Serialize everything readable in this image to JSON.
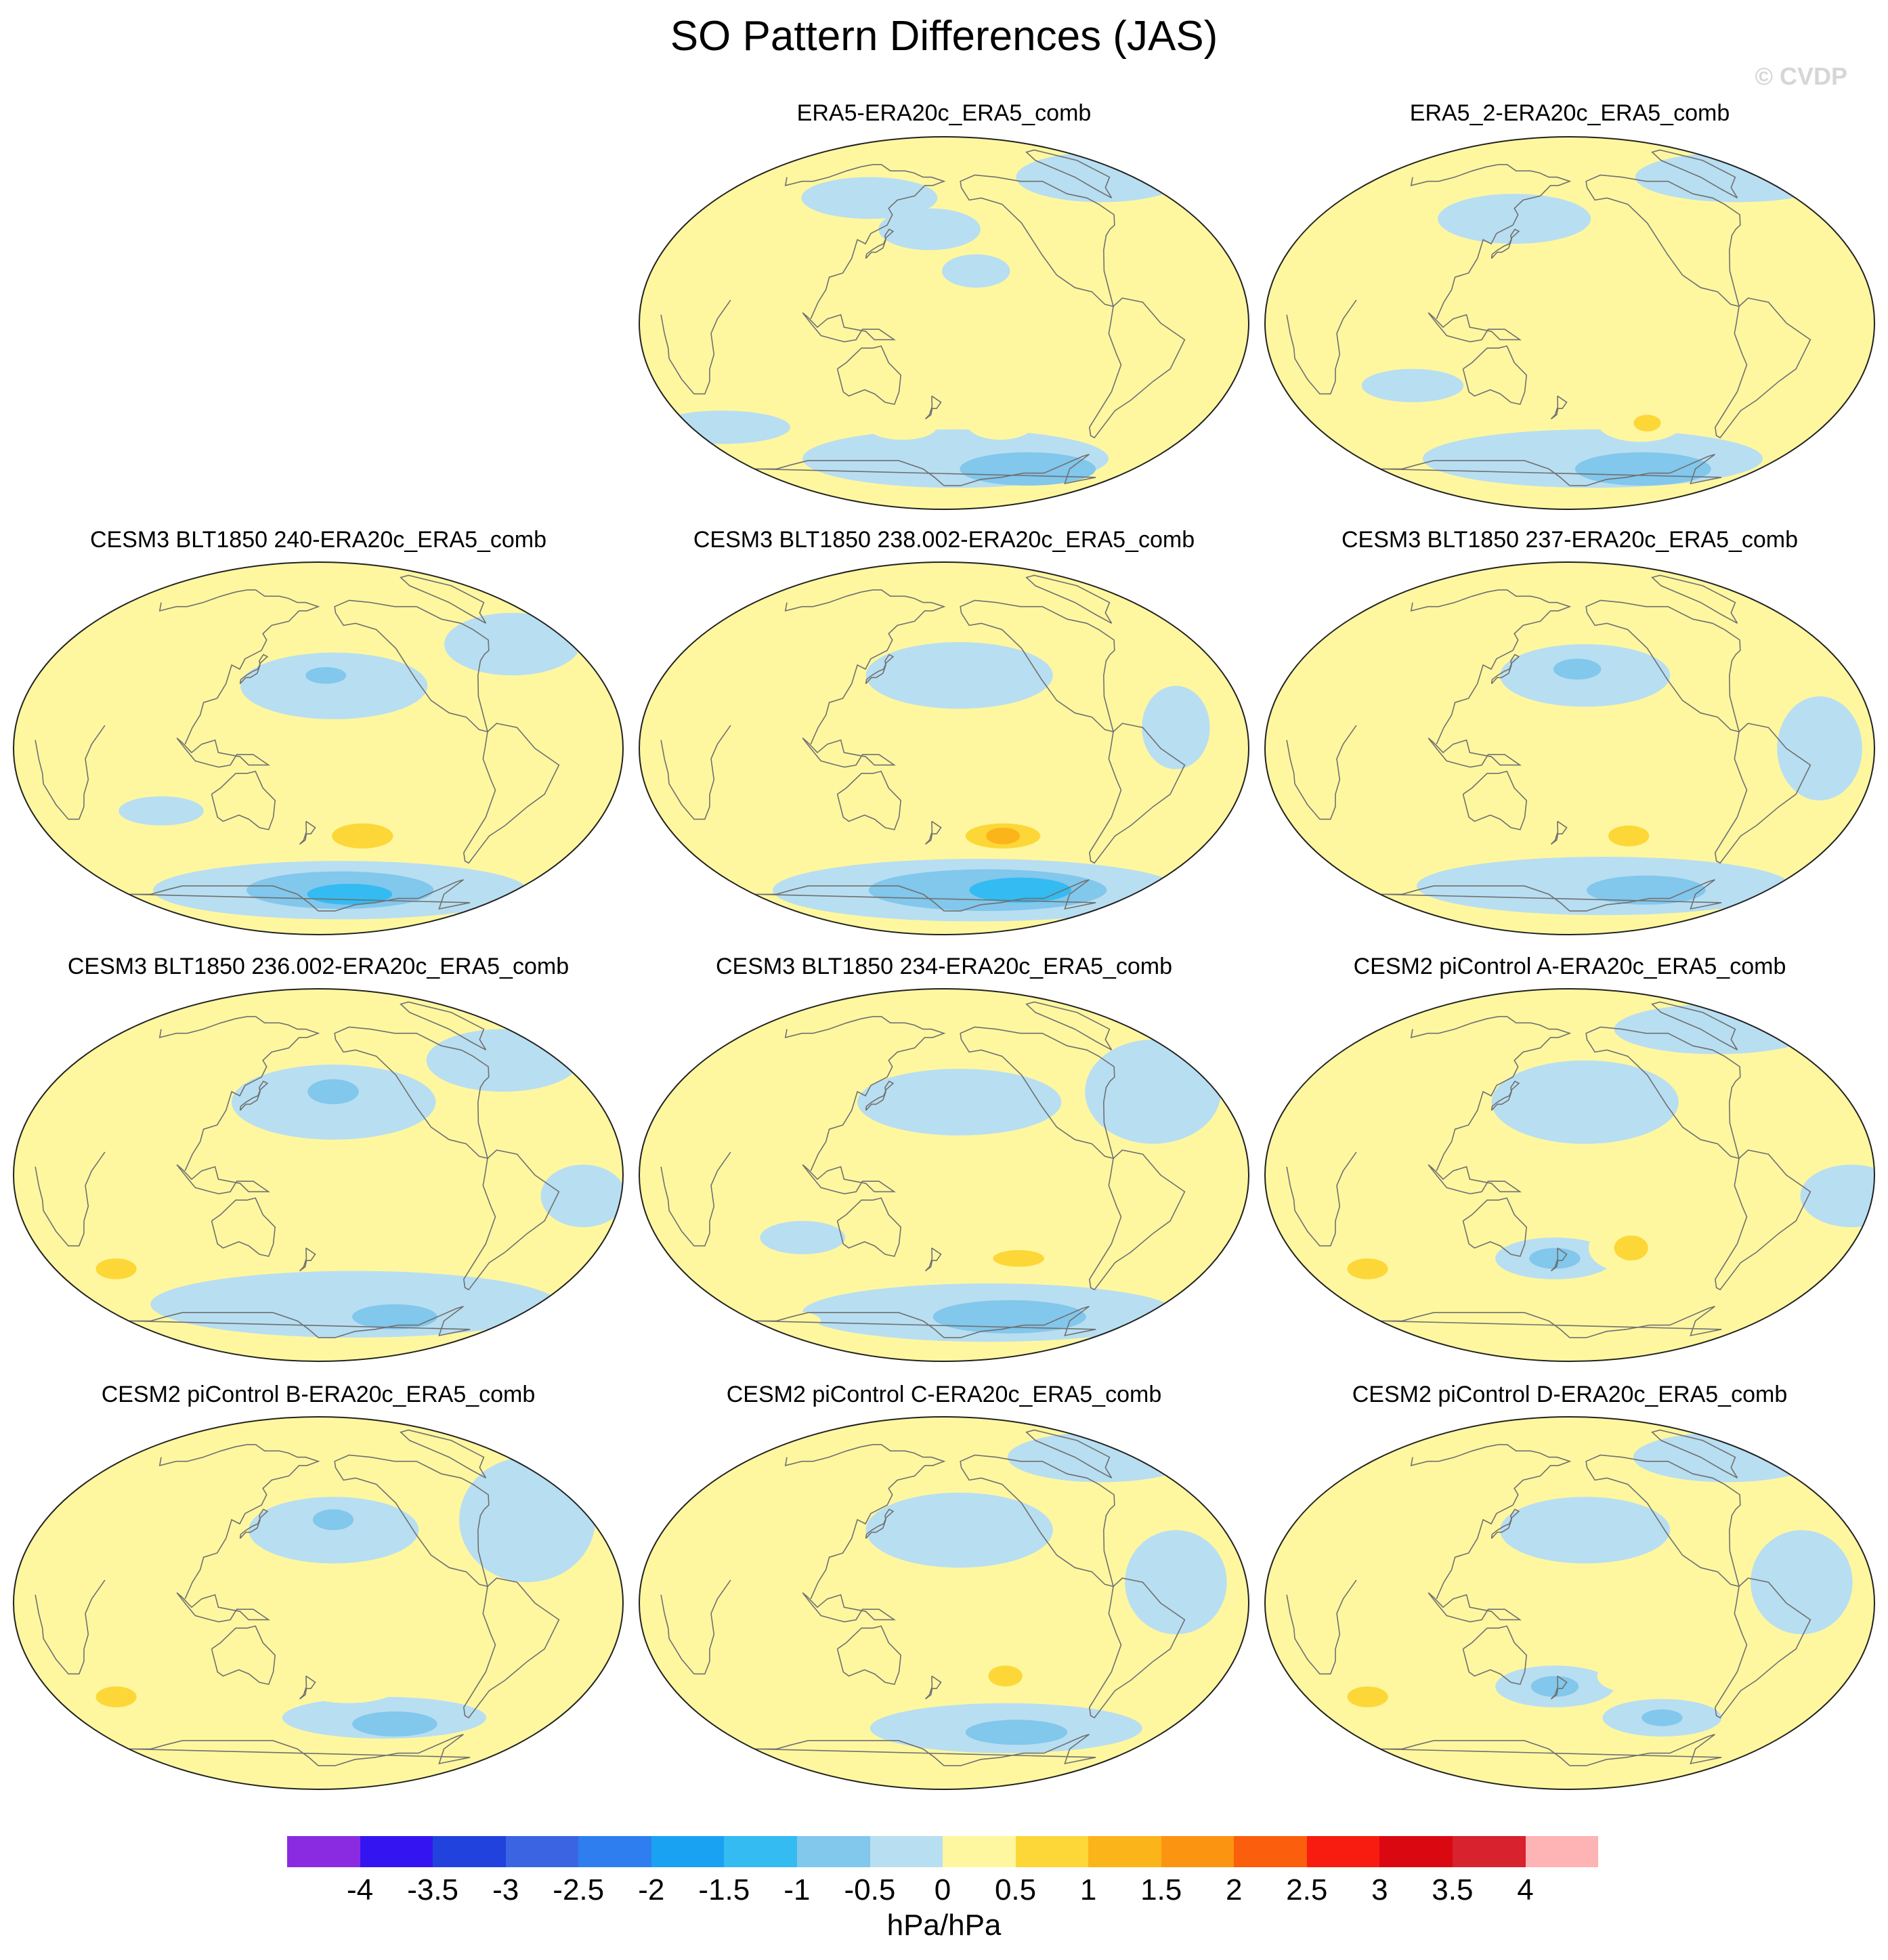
{
  "title": "SO Pattern Differences (JAS)",
  "watermark": "© CVDP",
  "chart_data": {
    "type": "heatmap",
    "title": "SO Pattern Differences (JAS)",
    "projection": "robinson",
    "units": "hPa/hPa",
    "colorbar": {
      "tick_labels": [
        "-4",
        "-3.5",
        "-3",
        "-2.5",
        "-2",
        "-1.5",
        "-1",
        "-0.5",
        "0",
        "0.5",
        "1",
        "1.5",
        "2",
        "2.5",
        "3",
        "3.5",
        "4"
      ],
      "colors": [
        "#8a2be2",
        "#3514f2",
        "#2142dd",
        "#3b64e2",
        "#2e7ef0",
        "#1aa2f2",
        "#33bbf2",
        "#82c7ec",
        "#b8def1",
        "#fef7a0",
        "#fcd737",
        "#fbb419",
        "#fb9410",
        "#fb5e0c",
        "#f81b10",
        "#d90811",
        "#d8222d",
        "#feb3b5"
      ]
    },
    "panels": [
      {
        "title": "ERA5-ERA20c_ERA5_comb",
        "features": [
          {
            "type": "neg",
            "level": 1,
            "lon": -170,
            "lat": -65,
            "rx": 90,
            "ry": 14
          },
          {
            "type": "neg",
            "level": 2,
            "lon": -100,
            "lat": -70,
            "rx": 40,
            "ry": 8
          },
          {
            "type": "neg",
            "level": 1,
            "lon": 20,
            "lat": -50,
            "rx": 40,
            "ry": 8
          },
          {
            "type": "pos",
            "level": 1,
            "lon": -140,
            "lat": -48,
            "rx": 20,
            "ry": 8
          },
          {
            "type": "pos",
            "level": 1,
            "lon": 150,
            "lat": -50,
            "rx": 20,
            "ry": 6
          },
          {
            "type": "neg",
            "level": 1,
            "lon": 170,
            "lat": 45,
            "rx": 30,
            "ry": 10
          },
          {
            "type": "neg",
            "level": 1,
            "lon": 120,
            "lat": 60,
            "rx": 40,
            "ry": 10
          },
          {
            "type": "neg",
            "level": 1,
            "lon": -30,
            "lat": 70,
            "rx": 50,
            "ry": 12
          },
          {
            "type": "neg",
            "level": 1,
            "lon": -160,
            "lat": 25,
            "rx": 20,
            "ry": 8
          }
        ]
      },
      {
        "title": "ERA5_2-ERA20c_ERA5_comb",
        "features": [
          {
            "type": "neg",
            "level": 1,
            "lon": -160,
            "lat": -65,
            "rx": 100,
            "ry": 14
          },
          {
            "type": "neg",
            "level": 2,
            "lon": -110,
            "lat": -70,
            "rx": 40,
            "ry": 8
          },
          {
            "type": "pos",
            "level": 1,
            "lon": -130,
            "lat": -48,
            "rx": 25,
            "ry": 9
          },
          {
            "type": "pos",
            "level": 2,
            "lon": -125,
            "lat": -48,
            "rx": 8,
            "ry": 4
          },
          {
            "type": "pos",
            "level": 1,
            "lon": 130,
            "lat": -40,
            "rx": 12,
            "ry": 8
          },
          {
            "type": "pos",
            "level": 1,
            "lon": 10,
            "lat": -50,
            "rx": 12,
            "ry": 6
          },
          {
            "type": "neg",
            "level": 1,
            "lon": 140,
            "lat": 50,
            "rx": 45,
            "ry": 12
          },
          {
            "type": "neg",
            "level": 1,
            "lon": -20,
            "lat": 70,
            "rx": 60,
            "ry": 12
          },
          {
            "type": "neg",
            "level": 1,
            "lon": 80,
            "lat": -30,
            "rx": 30,
            "ry": 8
          }
        ]
      },
      {
        "title": "CESM3 BLT1850 240-ERA20c_ERA5_comb",
        "features": [
          {
            "type": "neg",
            "level": 1,
            "lon": -160,
            "lat": -68,
            "rx": 110,
            "ry": 14
          },
          {
            "type": "neg",
            "level": 2,
            "lon": -160,
            "lat": -68,
            "rx": 55,
            "ry": 9
          },
          {
            "type": "neg",
            "level": 3,
            "lon": -150,
            "lat": -70,
            "rx": 25,
            "ry": 5
          },
          {
            "type": "pos",
            "level": 1,
            "lon": -170,
            "lat": -42,
            "rx": 50,
            "ry": 10
          },
          {
            "type": "pos",
            "level": 2,
            "lon": -150,
            "lat": -42,
            "rx": 18,
            "ry": 6
          },
          {
            "type": "pos",
            "level": 1,
            "lon": 40,
            "lat": -48,
            "rx": 30,
            "ry": 8
          },
          {
            "type": "neg",
            "level": 1,
            "lon": -170,
            "lat": 30,
            "rx": 55,
            "ry": 16
          },
          {
            "type": "neg",
            "level": 2,
            "lon": -175,
            "lat": 35,
            "rx": 12,
            "ry": 4
          },
          {
            "type": "neg",
            "level": 1,
            "lon": 80,
            "lat": -30,
            "rx": 25,
            "ry": 7
          },
          {
            "type": "neg",
            "level": 1,
            "lon": -40,
            "lat": 50,
            "rx": 40,
            "ry": 15
          }
        ]
      },
      {
        "title": "CESM3 BLT1850 238.002-ERA20c_ERA5_comb",
        "features": [
          {
            "type": "neg",
            "level": 1,
            "lon": -150,
            "lat": -68,
            "rx": 120,
            "ry": 15
          },
          {
            "type": "neg",
            "level": 2,
            "lon": -140,
            "lat": -68,
            "rx": 70,
            "ry": 10
          },
          {
            "type": "neg",
            "level": 3,
            "lon": -110,
            "lat": -68,
            "rx": 30,
            "ry": 6
          },
          {
            "type": "pos",
            "level": 1,
            "lon": -150,
            "lat": -42,
            "rx": 45,
            "ry": 10
          },
          {
            "type": "pos",
            "level": 2,
            "lon": -140,
            "lat": -42,
            "rx": 22,
            "ry": 6
          },
          {
            "type": "pos",
            "level": 3,
            "lon": -140,
            "lat": -42,
            "rx": 10,
            "ry": 4
          },
          {
            "type": "pos",
            "level": 1,
            "lon": 30,
            "lat": -45,
            "rx": 30,
            "ry": 7
          },
          {
            "type": "pos",
            "level": 1,
            "lon": -60,
            "lat": 78,
            "rx": 20,
            "ry": 6
          },
          {
            "type": "pos",
            "level": 1,
            "lon": 80,
            "lat": 80,
            "rx": 20,
            "ry": 5
          },
          {
            "type": "neg",
            "level": 1,
            "lon": -170,
            "lat": 35,
            "rx": 55,
            "ry": 16
          },
          {
            "type": "neg",
            "level": 1,
            "lon": -40,
            "lat": 10,
            "rx": 20,
            "ry": 20
          }
        ]
      },
      {
        "title": "CESM3 BLT1850 237-ERA20c_ERA5_comb",
        "features": [
          {
            "type": "neg",
            "level": 1,
            "lon": -150,
            "lat": -66,
            "rx": 110,
            "ry": 14
          },
          {
            "type": "neg",
            "level": 2,
            "lon": -110,
            "lat": -68,
            "rx": 35,
            "ry": 7
          },
          {
            "type": "pos",
            "level": 1,
            "lon": -150,
            "lat": -42,
            "rx": 35,
            "ry": 9
          },
          {
            "type": "pos",
            "level": 2,
            "lon": -140,
            "lat": -42,
            "rx": 12,
            "ry": 5
          },
          {
            "type": "pos",
            "level": 1,
            "lon": 40,
            "lat": -45,
            "rx": 20,
            "ry": 6
          },
          {
            "type": "neg",
            "level": 1,
            "lon": -170,
            "lat": 35,
            "rx": 50,
            "ry": 15
          },
          {
            "type": "neg",
            "level": 2,
            "lon": -175,
            "lat": 38,
            "rx": 14,
            "ry": 5
          },
          {
            "type": "pos",
            "level": 1,
            "lon": -170,
            "lat": 60,
            "rx": 10,
            "ry": 4
          },
          {
            "type": "neg",
            "level": 1,
            "lon": -30,
            "lat": 0,
            "rx": 25,
            "ry": 25
          }
        ]
      },
      {
        "title": "CESM3 BLT1850 236.002-ERA20c_ERA5_comb",
        "features": [
          {
            "type": "neg",
            "level": 1,
            "lon": -150,
            "lat": -62,
            "rx": 120,
            "ry": 16
          },
          {
            "type": "neg",
            "level": 2,
            "lon": -110,
            "lat": -68,
            "rx": 25,
            "ry": 6
          },
          {
            "type": "pos",
            "level": 1,
            "lon": -140,
            "lat": -35,
            "rx": 22,
            "ry": 8
          },
          {
            "type": "pos",
            "level": 1,
            "lon": 40,
            "lat": -45,
            "rx": 30,
            "ry": 10
          },
          {
            "type": "pos",
            "level": 2,
            "lon": 40,
            "lat": -45,
            "rx": 12,
            "ry": 5
          },
          {
            "type": "pos",
            "level": 1,
            "lon": -170,
            "lat": 65,
            "rx": 20,
            "ry": 8
          },
          {
            "type": "neg",
            "level": 1,
            "lon": -170,
            "lat": 35,
            "rx": 60,
            "ry": 18
          },
          {
            "type": "neg",
            "level": 2,
            "lon": -170,
            "lat": 40,
            "rx": 15,
            "ry": 6
          },
          {
            "type": "neg",
            "level": 1,
            "lon": -40,
            "lat": 55,
            "rx": 45,
            "ry": 15
          },
          {
            "type": "neg",
            "level": 1,
            "lon": -20,
            "lat": -10,
            "rx": 25,
            "ry": 15
          }
        ]
      },
      {
        "title": "CESM3 BLT1850 234-ERA20c_ERA5_comb",
        "features": [
          {
            "type": "neg",
            "level": 1,
            "lon": -140,
            "lat": -66,
            "rx": 110,
            "ry": 14
          },
          {
            "type": "neg",
            "level": 2,
            "lon": -120,
            "lat": -68,
            "rx": 45,
            "ry": 8
          },
          {
            "type": "pos",
            "level": 1,
            "lon": -130,
            "lat": -40,
            "rx": 40,
            "ry": 9
          },
          {
            "type": "pos",
            "level": 2,
            "lon": -130,
            "lat": -40,
            "rx": 15,
            "ry": 4
          },
          {
            "type": "pos",
            "level": 1,
            "lon": 30,
            "lat": -70,
            "rx": 20,
            "ry": 5
          },
          {
            "type": "neg",
            "level": 1,
            "lon": -170,
            "lat": 35,
            "rx": 60,
            "ry": 16
          },
          {
            "type": "neg",
            "level": 1,
            "lon": -40,
            "lat": 40,
            "rx": 40,
            "ry": 25
          },
          {
            "type": "neg",
            "level": 1,
            "lon": 90,
            "lat": -30,
            "rx": 25,
            "ry": 8
          }
        ]
      },
      {
        "title": "CESM2 piControl A-ERA20c_ERA5_comb",
        "features": [
          {
            "type": "neg",
            "level": 1,
            "lon": 170,
            "lat": -40,
            "rx": 35,
            "ry": 10
          },
          {
            "type": "neg",
            "level": 2,
            "lon": 170,
            "lat": -40,
            "rx": 15,
            "ry": 5
          },
          {
            "type": "pos",
            "level": 1,
            "lon": -140,
            "lat": -35,
            "rx": 25,
            "ry": 12
          },
          {
            "type": "pos",
            "level": 2,
            "lon": -140,
            "lat": -35,
            "rx": 10,
            "ry": 6
          },
          {
            "type": "pos",
            "level": 1,
            "lon": 40,
            "lat": -45,
            "rx": 35,
            "ry": 12
          },
          {
            "type": "pos",
            "level": 2,
            "lon": 40,
            "lat": -45,
            "rx": 12,
            "ry": 5
          },
          {
            "type": "neg",
            "level": 1,
            "lon": -170,
            "lat": 35,
            "rx": 55,
            "ry": 20
          },
          {
            "type": "neg",
            "level": 1,
            "lon": -40,
            "lat": 70,
            "rx": 60,
            "ry": 12
          },
          {
            "type": "neg",
            "level": 1,
            "lon": -10,
            "lat": -10,
            "rx": 30,
            "ry": 15
          }
        ]
      },
      {
        "title": "CESM2 piControl B-ERA20c_ERA5_comb",
        "features": [
          {
            "type": "neg",
            "level": 1,
            "lon": -130,
            "lat": -55,
            "rx": 60,
            "ry": 10
          },
          {
            "type": "neg",
            "level": 2,
            "lon": -120,
            "lat": -58,
            "rx": 25,
            "ry": 6
          },
          {
            "type": "pos",
            "level": 1,
            "lon": -160,
            "lat": -40,
            "rx": 30,
            "ry": 8
          },
          {
            "type": "pos",
            "level": 1,
            "lon": -80,
            "lat": -70,
            "rx": 20,
            "ry": 5
          },
          {
            "type": "pos",
            "level": 1,
            "lon": 40,
            "lat": -45,
            "rx": 35,
            "ry": 11
          },
          {
            "type": "pos",
            "level": 2,
            "lon": 40,
            "lat": -45,
            "rx": 12,
            "ry": 5
          },
          {
            "type": "neg",
            "level": 1,
            "lon": -170,
            "lat": 35,
            "rx": 50,
            "ry": 16
          },
          {
            "type": "neg",
            "level": 2,
            "lon": -170,
            "lat": 40,
            "rx": 12,
            "ry": 5
          },
          {
            "type": "neg",
            "level": 1,
            "lon": -40,
            "lat": 40,
            "rx": 40,
            "ry": 30
          }
        ]
      },
      {
        "title": "CESM2 piControl C-ERA20c_ERA5_comb",
        "features": [
          {
            "type": "neg",
            "level": 1,
            "lon": -130,
            "lat": -60,
            "rx": 80,
            "ry": 12
          },
          {
            "type": "neg",
            "level": 2,
            "lon": -120,
            "lat": -62,
            "rx": 30,
            "ry": 6
          },
          {
            "type": "pos",
            "level": 1,
            "lon": -140,
            "lat": -35,
            "rx": 22,
            "ry": 10
          },
          {
            "type": "pos",
            "level": 2,
            "lon": -140,
            "lat": -35,
            "rx": 10,
            "ry": 5
          },
          {
            "type": "pos",
            "level": 1,
            "lon": -30,
            "lat": -45,
            "rx": 15,
            "ry": 8
          },
          {
            "type": "neg",
            "level": 1,
            "lon": -170,
            "lat": 35,
            "rx": 55,
            "ry": 18
          },
          {
            "type": "neg",
            "level": 1,
            "lon": -30,
            "lat": 70,
            "rx": 55,
            "ry": 12
          },
          {
            "type": "neg",
            "level": 1,
            "lon": -40,
            "lat": 10,
            "rx": 30,
            "ry": 25
          }
        ]
      },
      {
        "title": "CESM2 piControl D-ERA20c_ERA5_comb",
        "features": [
          {
            "type": "neg",
            "level": 1,
            "lon": 170,
            "lat": -40,
            "rx": 35,
            "ry": 10
          },
          {
            "type": "neg",
            "level": 2,
            "lon": 170,
            "lat": -40,
            "rx": 14,
            "ry": 5
          },
          {
            "type": "neg",
            "level": 1,
            "lon": -110,
            "lat": -55,
            "rx": 35,
            "ry": 9
          },
          {
            "type": "neg",
            "level": 2,
            "lon": -110,
            "lat": -55,
            "rx": 12,
            "ry": 4
          },
          {
            "type": "pos",
            "level": 1,
            "lon": -140,
            "lat": -35,
            "rx": 20,
            "ry": 8
          },
          {
            "type": "pos",
            "level": 1,
            "lon": 40,
            "lat": -45,
            "rx": 35,
            "ry": 12
          },
          {
            "type": "pos",
            "level": 2,
            "lon": 40,
            "lat": -45,
            "rx": 12,
            "ry": 5
          },
          {
            "type": "pos",
            "level": 1,
            "lon": -130,
            "lat": -72,
            "rx": 60,
            "ry": 5
          },
          {
            "type": "neg",
            "level": 1,
            "lon": -170,
            "lat": 35,
            "rx": 50,
            "ry": 16
          },
          {
            "type": "neg",
            "level": 1,
            "lon": -30,
            "lat": 70,
            "rx": 55,
            "ry": 12
          },
          {
            "type": "neg",
            "level": 1,
            "lon": -40,
            "lat": 10,
            "rx": 30,
            "ry": 25
          }
        ]
      }
    ]
  }
}
